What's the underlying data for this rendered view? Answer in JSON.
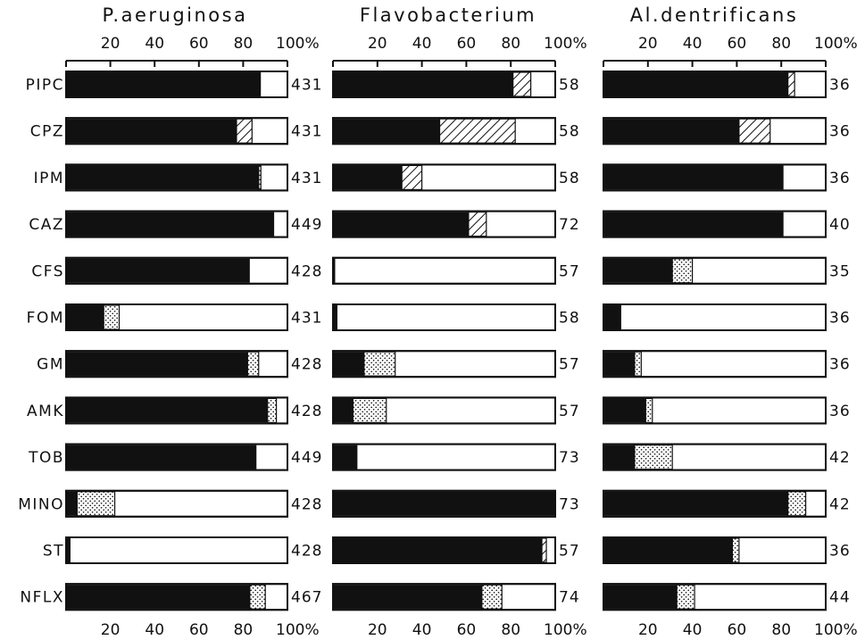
{
  "chart_data": {
    "type": "bar",
    "orientation": "horizontal",
    "stacked": true,
    "value_unit": "%",
    "xlim": [
      0,
      100
    ],
    "tick_labels": [
      "20",
      "40",
      "60",
      "80",
      "100%"
    ],
    "row_labels": [
      "PIPC",
      "CPZ",
      "IPM",
      "CAZ",
      "CFS",
      "FOM",
      "GM",
      "AMK",
      "TOB",
      "MINO",
      "ST",
      "NFLX"
    ],
    "segment_styles": [
      {
        "key": "s",
        "fill": "solid",
        "color": "#111111"
      },
      {
        "key": "i",
        "fill": "diagonal-hatch",
        "color": "#111111"
      },
      {
        "key": "d",
        "fill": "stipple",
        "color": "#111111"
      }
    ],
    "panels": [
      {
        "title": "P.aeruginosa",
        "rows": [
          {
            "label": "PIPC",
            "n": "431",
            "s": 88,
            "i": 0,
            "d": 0
          },
          {
            "label": "CPZ",
            "n": "431",
            "s": 77,
            "i": 7,
            "d": 0
          },
          {
            "label": "IPM",
            "n": "431",
            "s": 87,
            "i": 0,
            "d": 1
          },
          {
            "label": "CAZ",
            "n": "449",
            "s": 94,
            "i": 0,
            "d": 0
          },
          {
            "label": "CFS",
            "n": "428",
            "s": 83,
            "i": 0,
            "d": 0
          },
          {
            "label": "FOM",
            "n": "431",
            "s": 17,
            "i": 0,
            "d": 7
          },
          {
            "label": "GM",
            "n": "428",
            "s": 82,
            "i": 0,
            "d": 5
          },
          {
            "label": "AMK",
            "n": "428",
            "s": 91,
            "i": 0,
            "d": 4
          },
          {
            "label": "TOB",
            "n": "449",
            "s": 86,
            "i": 0,
            "d": 0
          },
          {
            "label": "MINO",
            "n": "428",
            "s": 5,
            "i": 0,
            "d": 17
          },
          {
            "label": "ST",
            "n": "428",
            "s": 2,
            "i": 0,
            "d": 0
          },
          {
            "label": "NFLX",
            "n": "467",
            "s": 83,
            "i": 0,
            "d": 7
          }
        ]
      },
      {
        "title": "Flavobacterium",
        "rows": [
          {
            "label": "PIPC",
            "n": "58",
            "s": 81,
            "i": 8,
            "d": 0
          },
          {
            "label": "CPZ",
            "n": "58",
            "s": 48,
            "i": 34,
            "d": 0
          },
          {
            "label": "IPM",
            "n": "58",
            "s": 31,
            "i": 9,
            "d": 0
          },
          {
            "label": "CAZ",
            "n": "72",
            "s": 61,
            "i": 8,
            "d": 0
          },
          {
            "label": "CFS",
            "n": "57",
            "s": 1,
            "i": 0,
            "d": 0
          },
          {
            "label": "FOM",
            "n": "58",
            "s": 2,
            "i": 0,
            "d": 0
          },
          {
            "label": "GM",
            "n": "57",
            "s": 14,
            "i": 0,
            "d": 14
          },
          {
            "label": "AMK",
            "n": "57",
            "s": 9,
            "i": 0,
            "d": 15
          },
          {
            "label": "TOB",
            "n": "73",
            "s": 11,
            "i": 0,
            "d": 0
          },
          {
            "label": "MINO",
            "n": "73",
            "s": 100,
            "i": 0,
            "d": 0
          },
          {
            "label": "ST",
            "n": "57",
            "s": 94,
            "i": 2,
            "d": 0
          },
          {
            "label": "NFLX",
            "n": "74",
            "s": 67,
            "i": 0,
            "d": 9
          }
        ]
      },
      {
        "title": "Al.dentrificans",
        "rows": [
          {
            "label": "PIPC",
            "n": "36",
            "s": 83,
            "i": 3,
            "d": 0
          },
          {
            "label": "CPZ",
            "n": "36",
            "s": 61,
            "i": 14,
            "d": 0
          },
          {
            "label": "IPM",
            "n": "36",
            "s": 81,
            "i": 0,
            "d": 0
          },
          {
            "label": "CAZ",
            "n": "40",
            "s": 81,
            "i": 0,
            "d": 0
          },
          {
            "label": "CFS",
            "n": "35",
            "s": 31,
            "i": 0,
            "d": 9
          },
          {
            "label": "FOM",
            "n": "36",
            "s": 8,
            "i": 0,
            "d": 0
          },
          {
            "label": "GM",
            "n": "36",
            "s": 14,
            "i": 0,
            "d": 3
          },
          {
            "label": "AMK",
            "n": "36",
            "s": 19,
            "i": 0,
            "d": 3
          },
          {
            "label": "TOB",
            "n": "42",
            "s": 14,
            "i": 0,
            "d": 17
          },
          {
            "label": "MINO",
            "n": "42",
            "s": 83,
            "i": 0,
            "d": 8
          },
          {
            "label": "ST",
            "n": "36",
            "s": 58,
            "i": 0,
            "d": 3
          },
          {
            "label": "NFLX",
            "n": "44",
            "s": 33,
            "i": 0,
            "d": 8
          }
        ]
      }
    ]
  }
}
